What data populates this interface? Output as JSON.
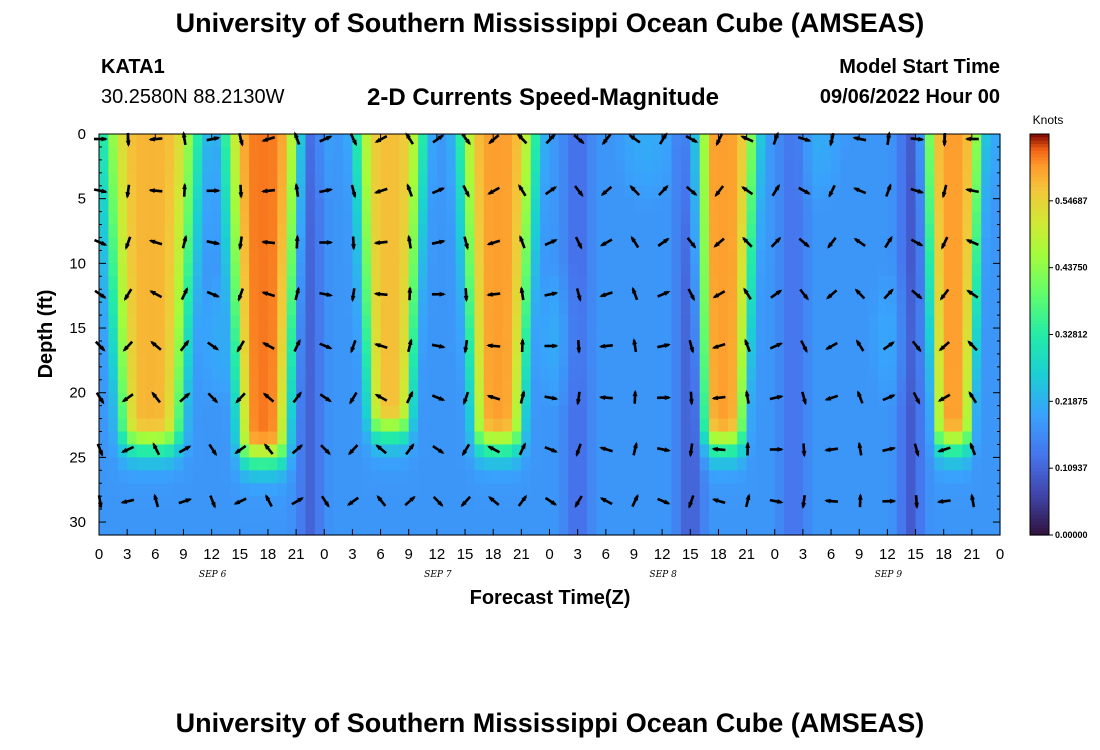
{
  "header": {
    "title": "University of Southern Mississippi Ocean Cube (AMSEAS)",
    "station": "KATA1",
    "coordinates": "30.2580N  88.2130W",
    "subtitle": "2-D Currents Speed-Magnitude",
    "model_start_label": "Model Start Time",
    "model_start_value": "09/06/2022 Hour 00"
  },
  "footer": {
    "title": "University of Southern Mississippi Ocean Cube (AMSEAS)"
  },
  "chart_data": {
    "type": "heatmap",
    "xlabel": "Forecast Time(Z)",
    "ylabel": "Depth (ft)",
    "x_range_hours": [
      0,
      96
    ],
    "y_range_ft": [
      0,
      31
    ],
    "y_ticks": [
      0,
      5,
      10,
      15,
      20,
      25,
      30
    ],
    "x_tick_labels": [
      "0",
      "3",
      "6",
      "9",
      "12",
      "15",
      "18",
      "21",
      "0",
      "3",
      "6",
      "9",
      "12",
      "15",
      "18",
      "21",
      "0",
      "3",
      "6",
      "9",
      "12",
      "15",
      "18",
      "21",
      "0",
      "3",
      "6",
      "9",
      "12",
      "15",
      "18",
      "21",
      "0"
    ],
    "date_labels": [
      {
        "label": "SEP 6",
        "hour": 12
      },
      {
        "label": "SEP 7",
        "hour": 36
      },
      {
        "label": "SEP 8",
        "hour": 60
      },
      {
        "label": "SEP 9",
        "hour": 84
      }
    ],
    "colorbar": {
      "title": "Knots",
      "min": 0.0,
      "max": 0.65625,
      "tick_labels": [
        "0.00000",
        "0.10937",
        "0.21875",
        "0.32812",
        "0.43750",
        "0.54687"
      ],
      "tick_values": [
        0.0,
        0.10937,
        0.21875,
        0.32812,
        0.4375,
        0.54687
      ]
    },
    "high_speed_cores": [
      {
        "center_hour": 5.5,
        "width_hours": 10,
        "bottom_depth_ft": 22,
        "peak_knots": 0.58
      },
      {
        "center_hour": 17.5,
        "width_hours": 8,
        "bottom_depth_ft": 23,
        "peak_knots": 0.62
      },
      {
        "center_hour": 31.0,
        "width_hours": 7,
        "bottom_depth_ft": 21,
        "peak_knots": 0.57
      },
      {
        "center_hour": 42.5,
        "width_hours": 8,
        "bottom_depth_ft": 22,
        "peak_knots": 0.6
      },
      {
        "center_hour": 66.5,
        "width_hours": 7,
        "bottom_depth_ft": 22,
        "peak_knots": 0.6
      },
      {
        "center_hour": 91.0,
        "width_hours": 6,
        "bottom_depth_ft": 22,
        "peak_knots": 0.6
      }
    ],
    "vector_rows_depth_ft": [
      0,
      4,
      8,
      12,
      16,
      20,
      24,
      28
    ],
    "vector_columns_hours": [
      0,
      3,
      6,
      9,
      12,
      15,
      18,
      21,
      24,
      27,
      30,
      33,
      36,
      39,
      42,
      45,
      48,
      51,
      54,
      57,
      60,
      63,
      66,
      69,
      72,
      75,
      78,
      81,
      84,
      87,
      90,
      93
    ]
  }
}
